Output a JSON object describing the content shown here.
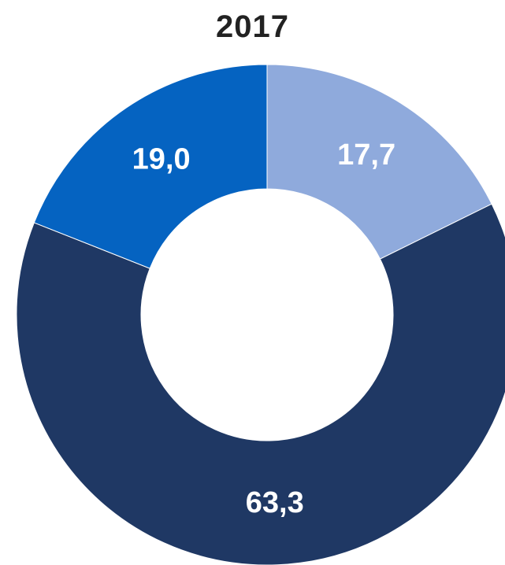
{
  "chart_data": {
    "type": "pie",
    "title": "2017",
    "donut": true,
    "slices": [
      {
        "label": "17,7",
        "value": 17.7,
        "color": "#8faadc"
      },
      {
        "label": "63,3",
        "value": 63.3,
        "color": "#1f3864"
      },
      {
        "label": "19,0",
        "value": 19.0,
        "color": "#0563c1"
      }
    ],
    "start": "top",
    "direction": "clockwise",
    "legend": "none"
  }
}
